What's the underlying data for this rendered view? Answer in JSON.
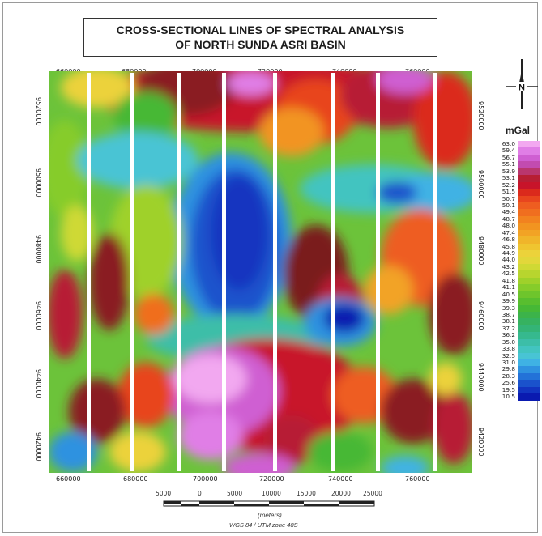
{
  "title": {
    "line1": "CROSS-SECTIONAL LINES OF SPECTRAL ANALYSIS",
    "line2": "OF NORTH SUNDA ASRI BASIN"
  },
  "north_arrow": {
    "label": "N"
  },
  "legend": {
    "title": "mGal",
    "values": [
      "63.0",
      "59.4",
      "56.7",
      "55.1",
      "53.9",
      "53.1",
      "52.2",
      "51.5",
      "50.7",
      "50.1",
      "49.4",
      "48.7",
      "48.0",
      "47.4",
      "46.8",
      "45.8",
      "44.9",
      "44.0",
      "43.2",
      "42.5",
      "41.8",
      "41.1",
      "40.5",
      "39.9",
      "39.3",
      "38.7",
      "38.1",
      "37.2",
      "36.2",
      "35.0",
      "33.8",
      "32.5",
      "31.0",
      "29.8",
      "28.3",
      "25.6",
      "19.5",
      "10.5"
    ],
    "colors": [
      "#f2a8f0",
      "#e07ee6",
      "#cf5fd2",
      "#c24bb0",
      "#b9366e",
      "#b71e34",
      "#c8142a",
      "#db2a1c",
      "#e8451e",
      "#ee5d20",
      "#f06e1f",
      "#f2821f",
      "#f29420",
      "#f2a325",
      "#f0b52a",
      "#efc530",
      "#ecd23a",
      "#e2d73a",
      "#cfd934",
      "#b8d52e",
      "#9fd12a",
      "#86cc2a",
      "#6ec52c",
      "#58be2f",
      "#46b836",
      "#3cb34a",
      "#36b260",
      "#34b476",
      "#36b98e",
      "#3cbea8",
      "#42c4c0",
      "#48c4d4",
      "#3fb2e4",
      "#2f92e0",
      "#2372d8",
      "#1a52cc",
      "#1234c0",
      "#0a1ab0"
    ]
  },
  "x_ticks_top": [
    "660000",
    "680000",
    "700000",
    "720000",
    "740000",
    "760000"
  ],
  "x_ticks_bottom": [
    "660000",
    "680000",
    "700000",
    "720000",
    "740000",
    "760000"
  ],
  "y_ticks_left": [
    "9520000",
    "9500000",
    "9480000",
    "9460000",
    "9440000",
    "9420000"
  ],
  "y_ticks_right": [
    "9520000",
    "9500000",
    "9480000",
    "9460000",
    "9440000",
    "9420000"
  ],
  "section_lines": {
    "count": 8
  },
  "scale_bar": {
    "labels": [
      "5000",
      "0",
      "5000",
      "10000",
      "15000",
      "20000",
      "25000"
    ],
    "units": "(meters)"
  },
  "projection": "WGS 84 / UTM zone 48S"
}
